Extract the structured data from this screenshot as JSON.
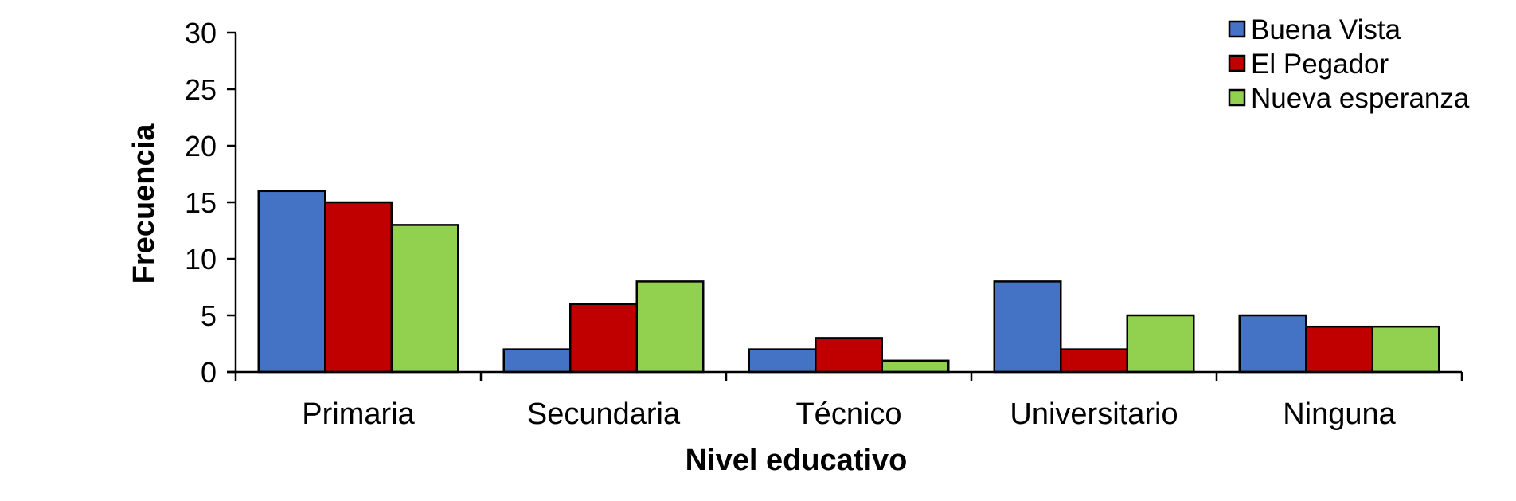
{
  "chart_data": {
    "type": "bar",
    "title": "",
    "xlabel": "Nivel educativo",
    "ylabel": "Frecuencia",
    "ylim": [
      0,
      30
    ],
    "yticks": [
      0,
      5,
      10,
      15,
      20,
      25,
      30
    ],
    "grid": false,
    "legend_position": "top-right",
    "categories": [
      "Primaria",
      "Secundaria",
      "Técnico",
      "Universitario",
      "Ninguna"
    ],
    "series": [
      {
        "name": "Buena Vista",
        "color": "#4472C4",
        "values": [
          16,
          2,
          2,
          8,
          5
        ]
      },
      {
        "name": "El Pegador",
        "color": "#C00000",
        "values": [
          15,
          6,
          3,
          2,
          4
        ]
      },
      {
        "name": "Nueva esperanza",
        "color": "#92D050",
        "values": [
          13,
          8,
          1,
          5,
          4
        ]
      }
    ]
  }
}
